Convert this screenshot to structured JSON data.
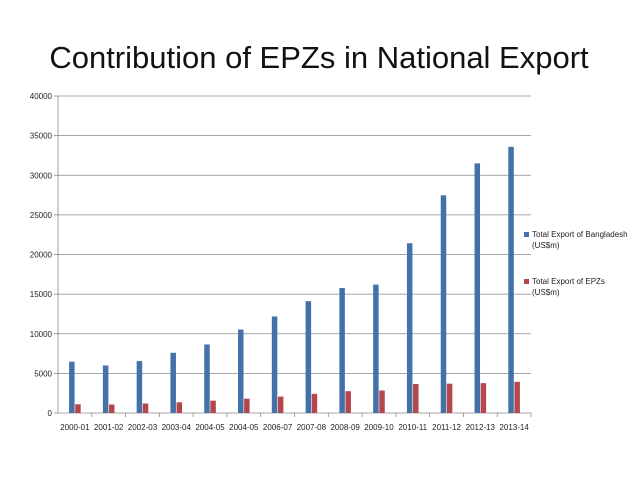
{
  "title": "Contribution of EPZs in National Export",
  "chart_data": {
    "type": "bar",
    "title": "Contribution of EPZs in National Export",
    "xlabel": "",
    "ylabel": "",
    "ylim": [
      0,
      40000
    ],
    "yticks": [
      0,
      5000,
      10000,
      15000,
      20000,
      25000,
      30000,
      35000,
      40000
    ],
    "grid": true,
    "legend_position": "right",
    "categories": [
      "2000-01",
      "2001-02",
      "2002-03",
      "2003-04",
      "2004-05",
      "2004-05",
      "2006-07",
      "2007-08",
      "2008-09",
      "2009-10",
      "2010-11",
      "2011-12",
      "2012-13",
      "2013-14"
    ],
    "series": [
      {
        "name_lines": [
          "Total Export of Bangladesh",
          "(US$m)"
        ],
        "color": "#4472a8",
        "values": [
          6470,
          6000,
          6550,
          7600,
          8650,
          10530,
          12180,
          14110,
          15770,
          16200,
          21420,
          27470,
          31500,
          33580
        ]
      },
      {
        "name_lines": [
          "Total Export of EPZs",
          "(US$m)"
        ],
        "color": "#b4474b",
        "values": [
          1100,
          1070,
          1200,
          1350,
          1560,
          1810,
          2070,
          2420,
          2750,
          2840,
          3660,
          3700,
          3770,
          3930
        ]
      }
    ]
  }
}
